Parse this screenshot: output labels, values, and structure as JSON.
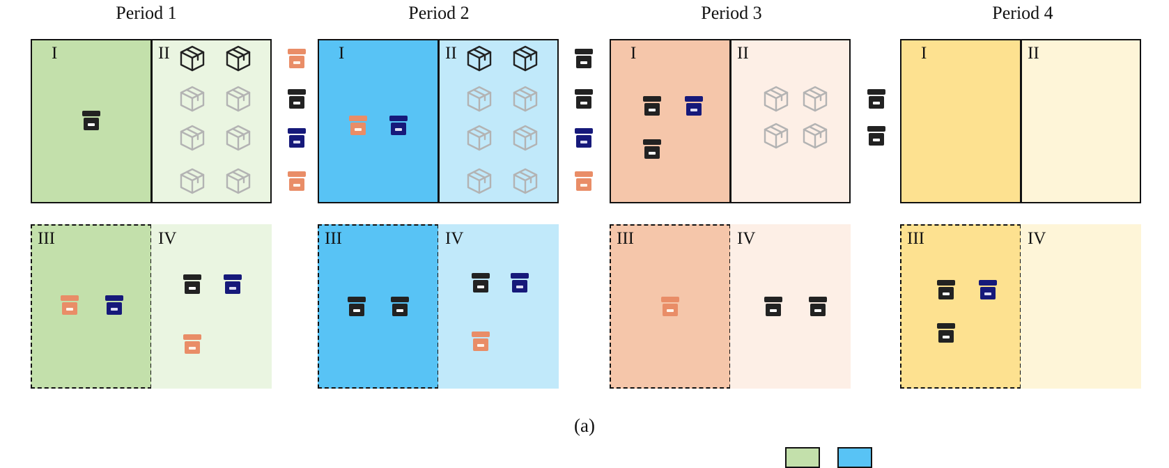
{
  "periods": [
    {
      "title": "Period 1",
      "colors": {
        "dark": "#c3e0ab",
        "light": "#eaf5e1"
      },
      "zones": [
        {
          "label": "I",
          "items": [
            "bin-black"
          ]
        },
        {
          "label": "II",
          "items": [
            "box-black",
            "box-black",
            "box-gray",
            "box-gray",
            "box-gray",
            "box-gray",
            "box-gray",
            "box-gray"
          ]
        },
        {
          "label": "III",
          "items": [
            "bin-orange",
            "bin-navy"
          ]
        },
        {
          "label": "IV",
          "items": [
            "bin-black",
            "bin-navy",
            "bin-orange"
          ]
        }
      ],
      "transit_items": [
        "bin-orange",
        "bin-black",
        "bin-navy",
        "bin-orange"
      ]
    },
    {
      "title": "Period 2",
      "colors": {
        "dark": "#58c3f5",
        "light": "#c1e9fa"
      },
      "zones": [
        {
          "label": "I",
          "items": [
            "bin-orange",
            "bin-navy"
          ]
        },
        {
          "label": "II",
          "items": [
            "box-black",
            "box-black",
            "box-gray",
            "box-gray",
            "box-gray",
            "box-gray",
            "box-gray",
            "box-gray"
          ]
        },
        {
          "label": "III",
          "items": [
            "bin-black",
            "bin-black"
          ]
        },
        {
          "label": "IV",
          "items": [
            "bin-black",
            "bin-navy",
            "bin-orange"
          ]
        }
      ],
      "transit_items": [
        "bin-black",
        "bin-black",
        "bin-navy",
        "bin-orange"
      ]
    },
    {
      "title": "Period 3",
      "colors": {
        "dark": "#f5c6aa",
        "light": "#fdefe6"
      },
      "zones": [
        {
          "label": "I",
          "items": [
            "bin-black",
            "bin-navy",
            "bin-black"
          ]
        },
        {
          "label": "II",
          "items": [
            "box-gray",
            "box-gray",
            "box-gray",
            "box-gray"
          ]
        },
        {
          "label": "III",
          "items": [
            "bin-orange"
          ]
        },
        {
          "label": "IV",
          "items": [
            "bin-black",
            "bin-black"
          ]
        }
      ],
      "transit_items": [
        "bin-black",
        "bin-black"
      ]
    },
    {
      "title": "Period 4",
      "colors": {
        "dark": "#fde190",
        "light": "#fef5d8"
      },
      "zones": [
        {
          "label": "I",
          "items": []
        },
        {
          "label": "II",
          "items": []
        },
        {
          "label": "III",
          "items": [
            "bin-black",
            "bin-navy",
            "bin-black"
          ]
        },
        {
          "label": "IV",
          "items": []
        }
      ],
      "transit_items": []
    }
  ],
  "caption": "(a)",
  "icon_colors": {
    "orange": "#e98d67",
    "black": "#222222",
    "navy": "#16197a",
    "gray": "#b3b3b3"
  }
}
